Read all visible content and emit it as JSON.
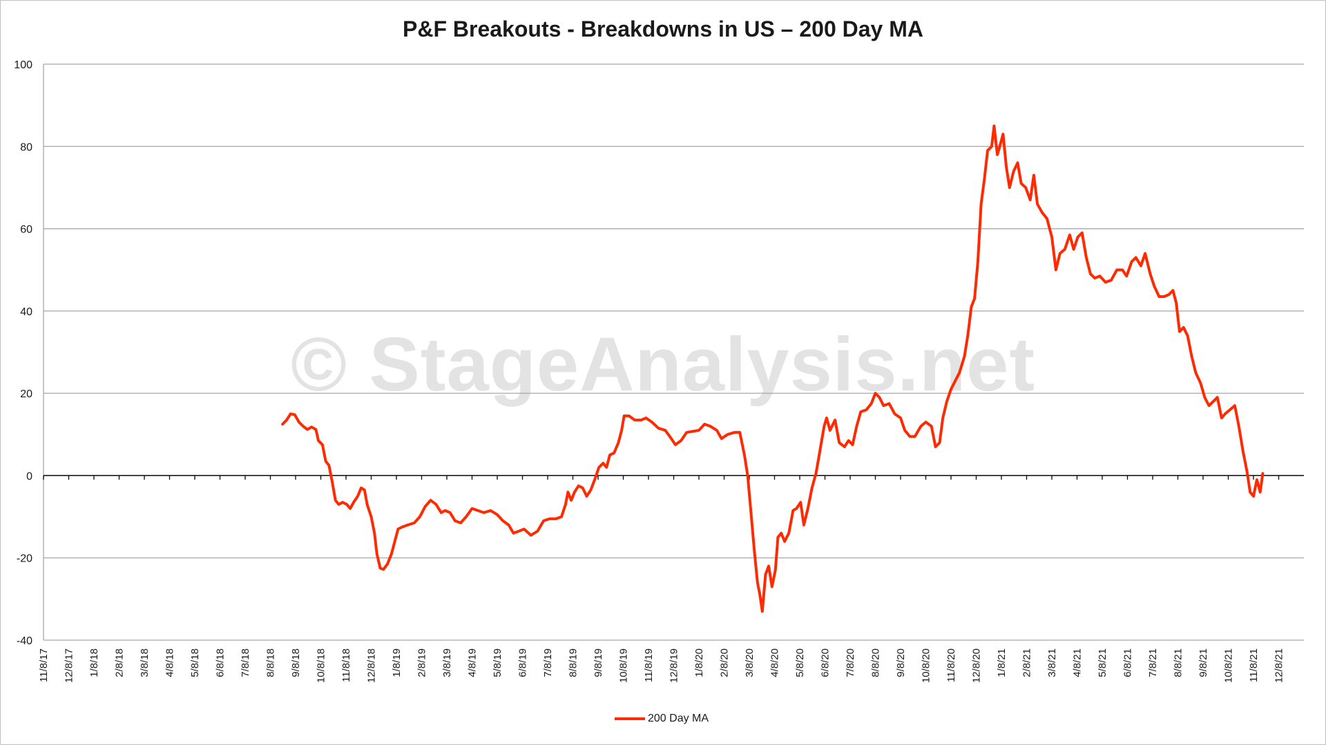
{
  "title": "P&F Breakouts - Breakdowns in US – 200 Day MA",
  "watermark": "© StageAnalysis.net",
  "chart_data": {
    "type": "line",
    "title": "P&F Breakouts - Breakdowns in US – 200 Day MA",
    "xlabel": "",
    "ylabel": "",
    "ylim": [
      -40,
      100
    ],
    "yticks": [
      -40,
      -20,
      0,
      20,
      40,
      60,
      80,
      100
    ],
    "grid": true,
    "legend_position": "bottom",
    "x_tick_labels": [
      "11/8/17",
      "12/8/17",
      "1/8/18",
      "2/8/18",
      "3/8/18",
      "4/8/18",
      "5/8/18",
      "6/8/18",
      "7/8/18",
      "8/8/18",
      "9/8/18",
      "10/8/18",
      "11/8/18",
      "12/8/18",
      "1/8/19",
      "2/8/19",
      "3/8/19",
      "4/8/19",
      "5/8/19",
      "6/8/19",
      "7/8/19",
      "8/8/19",
      "9/8/19",
      "10/8/19",
      "11/8/19",
      "12/8/19",
      "1/8/20",
      "2/8/20",
      "3/8/20",
      "4/8/20",
      "5/8/20",
      "6/8/20",
      "7/8/20",
      "8/8/20",
      "9/8/20",
      "10/8/20",
      "11/8/20",
      "12/8/20",
      "1/8/21",
      "2/8/21",
      "3/8/21",
      "4/8/21",
      "5/8/21",
      "6/8/21",
      "7/8/21",
      "8/8/21",
      "9/8/21",
      "10/8/21",
      "11/8/21",
      "12/8/21"
    ],
    "series": [
      {
        "name": "200 Day MA",
        "color": "#ff2a00",
        "points": [
          [
            "2018-08-23",
            12.5
          ],
          [
            "2018-08-28",
            13.5
          ],
          [
            "2018-09-02",
            15
          ],
          [
            "2018-09-07",
            14.8
          ],
          [
            "2018-09-12",
            13
          ],
          [
            "2018-09-17",
            12
          ],
          [
            "2018-09-22",
            11.2
          ],
          [
            "2018-09-27",
            11.8
          ],
          [
            "2018-10-02",
            11.2
          ],
          [
            "2018-10-05",
            8.5
          ],
          [
            "2018-10-10",
            7.5
          ],
          [
            "2018-10-14",
            3.5
          ],
          [
            "2018-10-18",
            2.5
          ],
          [
            "2018-10-22",
            -1.5
          ],
          [
            "2018-10-26",
            -6
          ],
          [
            "2018-10-30",
            -7
          ],
          [
            "2018-11-04",
            -6.5
          ],
          [
            "2018-11-09",
            -7
          ],
          [
            "2018-11-13",
            -8
          ],
          [
            "2018-11-17",
            -6.5
          ],
          [
            "2018-11-22",
            -5
          ],
          [
            "2018-11-26",
            -3
          ],
          [
            "2018-11-30",
            -3.5
          ],
          [
            "2018-12-03",
            -7
          ],
          [
            "2018-12-08",
            -10
          ],
          [
            "2018-12-12",
            -14
          ],
          [
            "2018-12-15",
            -19
          ],
          [
            "2018-12-19",
            -22.5
          ],
          [
            "2018-12-23",
            -22.8
          ],
          [
            "2018-12-28",
            -21.5
          ],
          [
            "2019-01-02",
            -19
          ],
          [
            "2019-01-06",
            -16
          ],
          [
            "2019-01-10",
            -13
          ],
          [
            "2019-01-15",
            -12.5
          ],
          [
            "2019-01-22",
            -12
          ],
          [
            "2019-01-30",
            -11.5
          ],
          [
            "2019-02-06",
            -10
          ],
          [
            "2019-02-12",
            -7.5
          ],
          [
            "2019-02-18",
            -6
          ],
          [
            "2019-02-24",
            -7
          ],
          [
            "2019-03-01",
            -9
          ],
          [
            "2019-03-06",
            -8.5
          ],
          [
            "2019-03-12",
            -9
          ],
          [
            "2019-03-18",
            -11
          ],
          [
            "2019-03-25",
            -11.5
          ],
          [
            "2019-04-01",
            -10
          ],
          [
            "2019-04-08",
            -8
          ],
          [
            "2019-04-15",
            -8.5
          ],
          [
            "2019-04-22",
            -9
          ],
          [
            "2019-04-30",
            -8.5
          ],
          [
            "2019-05-08",
            -9.5
          ],
          [
            "2019-05-15",
            -11
          ],
          [
            "2019-05-22",
            -12
          ],
          [
            "2019-05-28",
            -14
          ],
          [
            "2019-06-04",
            -13.5
          ],
          [
            "2019-06-10",
            -13
          ],
          [
            "2019-06-18",
            -14.5
          ],
          [
            "2019-06-26",
            -13.5
          ],
          [
            "2019-07-03",
            -11
          ],
          [
            "2019-07-10",
            -10.5
          ],
          [
            "2019-07-18",
            -10.5
          ],
          [
            "2019-07-25",
            -10
          ],
          [
            "2019-07-30",
            -7
          ],
          [
            "2019-08-02",
            -4
          ],
          [
            "2019-08-06",
            -6
          ],
          [
            "2019-08-10",
            -4
          ],
          [
            "2019-08-15",
            -2.5
          ],
          [
            "2019-08-20",
            -3
          ],
          [
            "2019-08-25",
            -5
          ],
          [
            "2019-08-30",
            -3.5
          ],
          [
            "2019-09-04",
            -1
          ],
          [
            "2019-09-09",
            2
          ],
          [
            "2019-09-14",
            3
          ],
          [
            "2019-09-18",
            2
          ],
          [
            "2019-09-22",
            5
          ],
          [
            "2019-09-27",
            5.5
          ],
          [
            "2019-10-02",
            8
          ],
          [
            "2019-10-06",
            11
          ],
          [
            "2019-10-09",
            14.5
          ],
          [
            "2019-10-15",
            14.5
          ],
          [
            "2019-10-22",
            13.5
          ],
          [
            "2019-10-30",
            13.5
          ],
          [
            "2019-11-05",
            14
          ],
          [
            "2019-11-12",
            13
          ],
          [
            "2019-11-20",
            11.5
          ],
          [
            "2019-11-28",
            11
          ],
          [
            "2019-12-05",
            9
          ],
          [
            "2019-12-10",
            7.5
          ],
          [
            "2019-12-17",
            8.5
          ],
          [
            "2019-12-24",
            10.5
          ],
          [
            "2020-01-02",
            10.8
          ],
          [
            "2020-01-08",
            11
          ],
          [
            "2020-01-15",
            12.5
          ],
          [
            "2020-01-22",
            12
          ],
          [
            "2020-01-30",
            11
          ],
          [
            "2020-02-05",
            9
          ],
          [
            "2020-02-12",
            10
          ],
          [
            "2020-02-20",
            10.5
          ],
          [
            "2020-02-26",
            10.5
          ],
          [
            "2020-03-02",
            5
          ],
          [
            "2020-03-06",
            0
          ],
          [
            "2020-03-10",
            -9
          ],
          [
            "2020-03-14",
            -18
          ],
          [
            "2020-03-18",
            -26
          ],
          [
            "2020-03-21",
            -29
          ],
          [
            "2020-03-24",
            -33
          ],
          [
            "2020-03-28",
            -24
          ],
          [
            "2020-04-01",
            -22
          ],
          [
            "2020-04-05",
            -27
          ],
          [
            "2020-04-09",
            -23
          ],
          [
            "2020-04-12",
            -15
          ],
          [
            "2020-04-16",
            -14
          ],
          [
            "2020-04-20",
            -16
          ],
          [
            "2020-04-25",
            -14
          ],
          [
            "2020-04-30",
            -8.5
          ],
          [
            "2020-05-04",
            -8
          ],
          [
            "2020-05-09",
            -6.5
          ],
          [
            "2020-05-13",
            -12
          ],
          [
            "2020-05-18",
            -8
          ],
          [
            "2020-05-23",
            -3
          ],
          [
            "2020-05-28",
            0.5
          ],
          [
            "2020-06-02",
            6
          ],
          [
            "2020-06-07",
            12
          ],
          [
            "2020-06-10",
            14
          ],
          [
            "2020-06-14",
            11
          ],
          [
            "2020-06-20",
            13.5
          ],
          [
            "2020-06-25",
            8
          ],
          [
            "2020-07-01",
            7
          ],
          [
            "2020-07-06",
            8.5
          ],
          [
            "2020-07-11",
            7.5
          ],
          [
            "2020-07-16",
            12
          ],
          [
            "2020-07-21",
            15.5
          ],
          [
            "2020-07-28",
            16
          ],
          [
            "2020-08-03",
            17.5
          ],
          [
            "2020-08-08",
            20
          ],
          [
            "2020-08-13",
            19
          ],
          [
            "2020-08-18",
            17
          ],
          [
            "2020-08-25",
            17.5
          ],
          [
            "2020-09-01",
            15
          ],
          [
            "2020-09-08",
            14
          ],
          [
            "2020-09-13",
            11
          ],
          [
            "2020-09-19",
            9.5
          ],
          [
            "2020-09-25",
            9.5
          ],
          [
            "2020-10-02",
            12
          ],
          [
            "2020-10-08",
            13
          ],
          [
            "2020-10-15",
            12
          ],
          [
            "2020-10-20",
            7
          ],
          [
            "2020-10-25",
            8
          ],
          [
            "2020-10-29",
            14
          ],
          [
            "2020-11-03",
            18
          ],
          [
            "2020-11-08",
            21
          ],
          [
            "2020-11-13",
            23
          ],
          [
            "2020-11-18",
            25
          ],
          [
            "2020-11-24",
            29
          ],
          [
            "2020-11-28",
            34
          ],
          [
            "2020-12-02",
            41
          ],
          [
            "2020-12-06",
            43
          ],
          [
            "2020-12-10",
            52
          ],
          [
            "2020-12-14",
            66
          ],
          [
            "2020-12-18",
            72
          ],
          [
            "2020-12-22",
            79
          ],
          [
            "2020-12-27",
            80
          ],
          [
            "2020-12-30",
            85
          ],
          [
            "2021-01-03",
            78
          ],
          [
            "2021-01-06",
            80
          ],
          [
            "2021-01-10",
            83
          ],
          [
            "2021-01-14",
            75
          ],
          [
            "2021-01-18",
            70
          ],
          [
            "2021-01-23",
            74
          ],
          [
            "2021-01-28",
            76
          ],
          [
            "2021-02-02",
            71
          ],
          [
            "2021-02-07",
            70
          ],
          [
            "2021-02-12",
            67
          ],
          [
            "2021-02-16",
            73
          ],
          [
            "2021-02-20",
            66
          ],
          [
            "2021-02-25",
            64
          ],
          [
            "2021-03-02",
            62.5
          ],
          [
            "2021-03-08",
            58
          ],
          [
            "2021-03-13",
            50
          ],
          [
            "2021-03-18",
            54
          ],
          [
            "2021-03-24",
            55
          ],
          [
            "2021-03-30",
            58.5
          ],
          [
            "2021-04-04",
            55
          ],
          [
            "2021-04-09",
            58
          ],
          [
            "2021-04-14",
            59
          ],
          [
            "2021-04-19",
            53
          ],
          [
            "2021-04-24",
            49
          ],
          [
            "2021-04-29",
            48
          ],
          [
            "2021-05-05",
            48.5
          ],
          [
            "2021-05-12",
            47
          ],
          [
            "2021-05-19",
            47.5
          ],
          [
            "2021-05-26",
            50
          ],
          [
            "2021-06-02",
            50
          ],
          [
            "2021-06-07",
            48.5
          ],
          [
            "2021-06-13",
            52
          ],
          [
            "2021-06-18",
            53
          ],
          [
            "2021-06-24",
            51
          ],
          [
            "2021-06-29",
            54
          ],
          [
            "2021-07-05",
            49
          ],
          [
            "2021-07-10",
            46
          ],
          [
            "2021-07-16",
            43.5
          ],
          [
            "2021-07-22",
            43.5
          ],
          [
            "2021-07-28",
            44
          ],
          [
            "2021-08-02",
            45
          ],
          [
            "2021-08-06",
            42
          ],
          [
            "2021-08-10",
            35
          ],
          [
            "2021-08-15",
            36
          ],
          [
            "2021-08-20",
            34
          ],
          [
            "2021-08-25",
            29
          ],
          [
            "2021-08-30",
            25
          ],
          [
            "2021-09-05",
            22.5
          ],
          [
            "2021-09-10",
            19
          ],
          [
            "2021-09-15",
            17
          ],
          [
            "2021-09-20",
            18
          ],
          [
            "2021-09-25",
            19
          ],
          [
            "2021-09-30",
            14
          ],
          [
            "2021-10-04",
            15
          ],
          [
            "2021-10-10",
            16
          ],
          [
            "2021-10-16",
            17
          ],
          [
            "2021-10-21",
            12
          ],
          [
            "2021-10-26",
            6
          ],
          [
            "2021-10-31",
            1
          ],
          [
            "2021-11-04",
            -4
          ],
          [
            "2021-11-08",
            -5
          ],
          [
            "2021-11-12",
            -1
          ],
          [
            "2021-11-16",
            -4
          ],
          [
            "2021-11-19",
            0.5
          ]
        ]
      }
    ]
  }
}
